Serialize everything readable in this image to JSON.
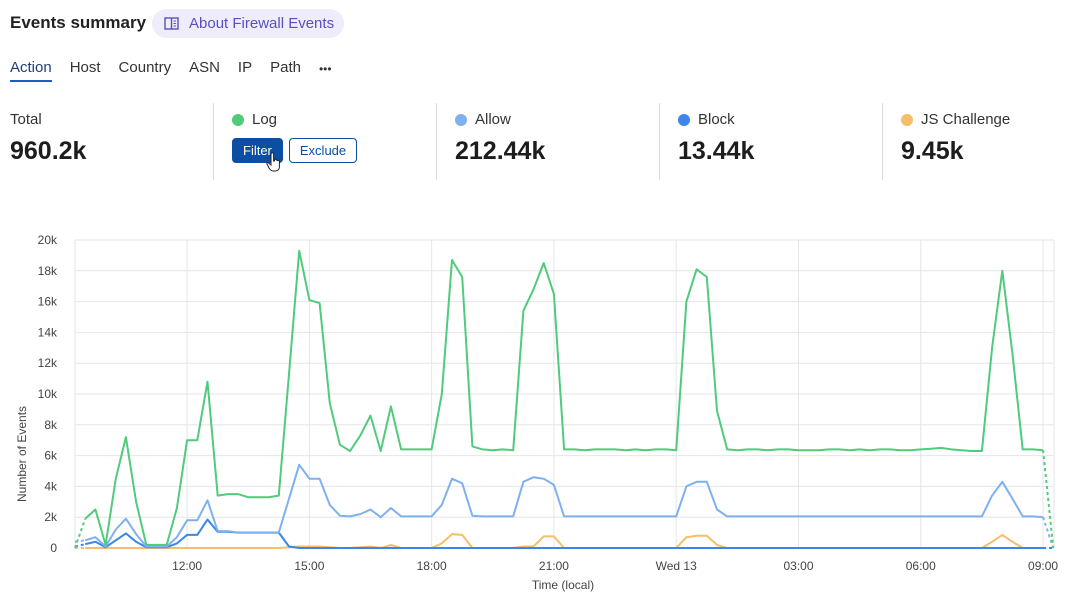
{
  "header": {
    "title": "Events summary",
    "about_label": "About Firewall Events",
    "about_icon": "book-icon"
  },
  "tabs": [
    {
      "label": "Action",
      "active": true
    },
    {
      "label": "Host"
    },
    {
      "label": "Country"
    },
    {
      "label": "ASN"
    },
    {
      "label": "IP"
    },
    {
      "label": "Path"
    },
    {
      "label": "•••"
    }
  ],
  "stats": {
    "total": {
      "label": "Total",
      "value": "960.2k"
    },
    "log": {
      "label": "Log",
      "color": "#4fcb7b",
      "filter_label": "Filter",
      "exclude_label": "Exclude"
    },
    "allow": {
      "label": "Allow",
      "value": "212.44k",
      "color": "#7fb0ef"
    },
    "block": {
      "label": "Block",
      "value": "13.44k",
      "color": "#3a86ea"
    },
    "js": {
      "label": "JS Challenge",
      "value": "9.45k",
      "color": "#f6bd6a"
    }
  },
  "chart_data": {
    "type": "line",
    "xlabel": "Time (local)",
    "ylabel": "Number of Events",
    "ylim": [
      0,
      20000
    ],
    "yticks": [
      0,
      2000,
      4000,
      6000,
      8000,
      10000,
      12000,
      14000,
      16000,
      18000,
      20000
    ],
    "ytick_labels": [
      "0",
      "2k",
      "4k",
      "6k",
      "8k",
      "10k",
      "12k",
      "14k",
      "16k",
      "18k",
      "20k"
    ],
    "x_start": "Tue 09:15",
    "x_interval_minutes": 15,
    "xticks": [
      {
        "index": 11,
        "label": "12:00"
      },
      {
        "index": 23,
        "label": "15:00"
      },
      {
        "index": 35,
        "label": "18:00"
      },
      {
        "index": 47,
        "label": "21:00"
      },
      {
        "index": 59,
        "label": "Wed 13"
      },
      {
        "index": 71,
        "label": "03:00"
      },
      {
        "index": 83,
        "label": "06:00"
      },
      {
        "index": 95,
        "label": "09:00"
      }
    ],
    "grid": true,
    "series": [
      {
        "name": "Log",
        "color": "#4fcb7b",
        "values": [
          0,
          1900,
          2500,
          200,
          4500,
          7200,
          3000,
          200,
          200,
          200,
          2600,
          7000,
          7000,
          10800,
          3400,
          3500,
          3500,
          3300,
          3300,
          3300,
          3400,
          11300,
          19300,
          16100,
          15900,
          9400,
          6700,
          6300,
          7300,
          8600,
          6300,
          9200,
          6400,
          6400,
          6400,
          6400,
          10000,
          18700,
          17600,
          6600,
          6400,
          6350,
          6400,
          6350,
          15400,
          16800,
          18500,
          16500,
          6400,
          6400,
          6350,
          6400,
          6400,
          6400,
          6350,
          6400,
          6350,
          6400,
          6400,
          6350,
          16000,
          18100,
          17600,
          8900,
          6400,
          6350,
          6400,
          6400,
          6350,
          6400,
          6400,
          6350,
          6350,
          6350,
          6400,
          6400,
          6350,
          6400,
          6350,
          6400,
          6400,
          6350,
          6350,
          6400,
          6450,
          6500,
          6400,
          6350,
          6300,
          6300,
          13000,
          18000,
          12600,
          6400,
          6400,
          6350,
          0
        ]
      },
      {
        "name": "Allow",
        "color": "#7fb0ef",
        "values": [
          400,
          500,
          700,
          100,
          1200,
          1900,
          900,
          100,
          100,
          100,
          700,
          1800,
          1800,
          3100,
          1100,
          1100,
          1000,
          1000,
          1000,
          1000,
          1000,
          3200,
          5400,
          4500,
          4500,
          2800,
          2100,
          2050,
          2200,
          2500,
          2000,
          2600,
          2050,
          2050,
          2050,
          2050,
          2800,
          4500,
          4200,
          2100,
          2050,
          2050,
          2050,
          2050,
          4300,
          4600,
          4500,
          4100,
          2050,
          2050,
          2050,
          2050,
          2050,
          2050,
          2050,
          2050,
          2050,
          2050,
          2050,
          2050,
          4000,
          4300,
          4300,
          2500,
          2050,
          2050,
          2050,
          2050,
          2050,
          2050,
          2050,
          2050,
          2050,
          2050,
          2050,
          2050,
          2050,
          2050,
          2050,
          2050,
          2050,
          2050,
          2050,
          2050,
          2050,
          2050,
          2050,
          2050,
          2050,
          2050,
          3400,
          4300,
          3200,
          2050,
          2050,
          2000,
          0
        ]
      },
      {
        "name": "Block",
        "color": "#3a86ea",
        "values": [
          100,
          250,
          400,
          50,
          500,
          950,
          400,
          50,
          50,
          50,
          300,
          850,
          850,
          1850,
          1050,
          1050,
          1000,
          1000,
          1000,
          1000,
          1000,
          100,
          0,
          0,
          0,
          0,
          0,
          0,
          0,
          0,
          0,
          0,
          0,
          0,
          0,
          0,
          0,
          0,
          0,
          0,
          0,
          0,
          0,
          0,
          0,
          0,
          0,
          0,
          0,
          0,
          0,
          0,
          0,
          0,
          0,
          0,
          0,
          0,
          0,
          0,
          0,
          0,
          0,
          0,
          0,
          0,
          0,
          0,
          0,
          0,
          0,
          0,
          0,
          0,
          0,
          0,
          0,
          0,
          0,
          0,
          0,
          0,
          0,
          0,
          0,
          0,
          0,
          0,
          0,
          0,
          0,
          0,
          0,
          0,
          0,
          0,
          0
        ]
      },
      {
        "name": "JS Challenge",
        "color": "#f6bd6a",
        "values": [
          0,
          0,
          0,
          0,
          0,
          0,
          0,
          0,
          0,
          0,
          0,
          0,
          0,
          0,
          0,
          0,
          0,
          0,
          0,
          0,
          0,
          50,
          100,
          100,
          100,
          50,
          0,
          0,
          50,
          100,
          0,
          200,
          0,
          0,
          0,
          0,
          300,
          900,
          850,
          0,
          0,
          0,
          0,
          0,
          100,
          100,
          750,
          750,
          0,
          0,
          0,
          0,
          0,
          0,
          0,
          0,
          0,
          0,
          0,
          0,
          700,
          800,
          800,
          200,
          0,
          0,
          0,
          0,
          0,
          0,
          0,
          0,
          0,
          0,
          0,
          0,
          0,
          0,
          0,
          0,
          0,
          0,
          0,
          0,
          0,
          0,
          0,
          0,
          0,
          0,
          400,
          850,
          400,
          0,
          0,
          0,
          0
        ]
      }
    ]
  }
}
